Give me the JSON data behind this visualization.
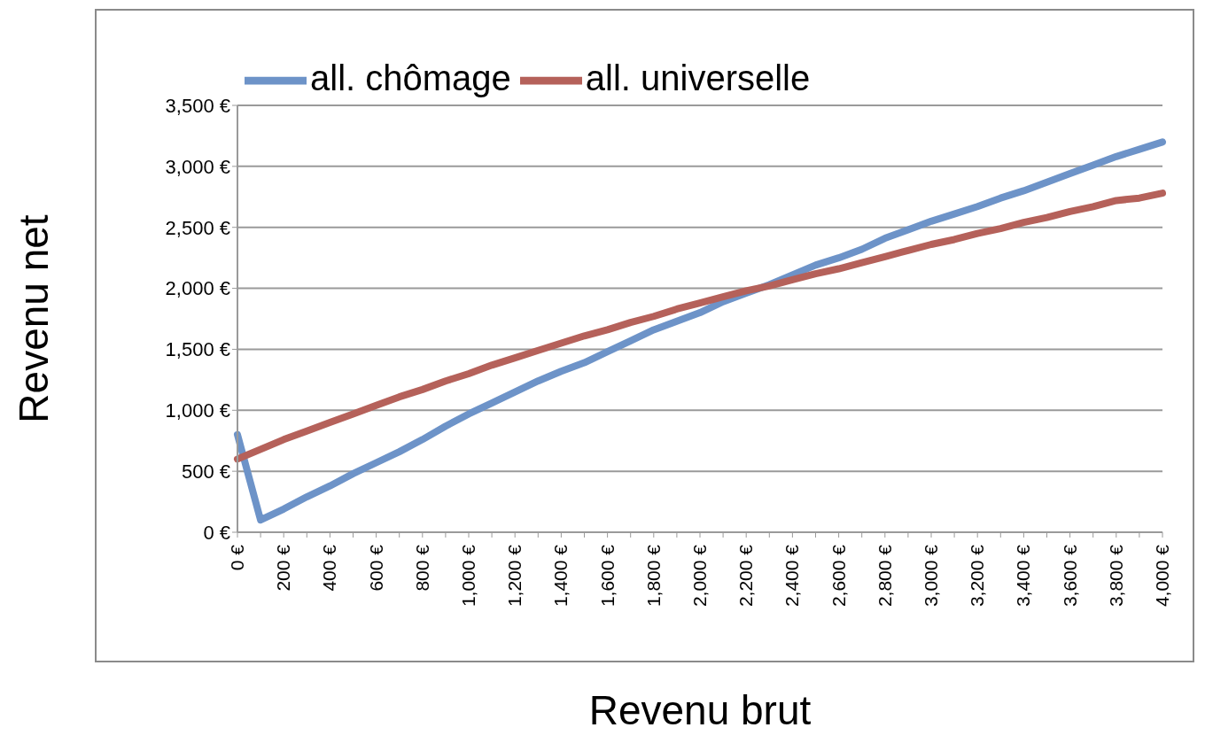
{
  "chart_data": {
    "type": "line",
    "xlabel": "Revenu brut",
    "ylabel": "Revenu net",
    "categories": [
      "0 €",
      null,
      "200 €",
      null,
      "400 €",
      null,
      "600 €",
      null,
      "800 €",
      null,
      "1,000 €",
      null,
      "1,200 €",
      null,
      "1,400 €",
      null,
      "1,600 €",
      null,
      "1,800 €",
      null,
      "2,000 €",
      null,
      "2,200 €",
      null,
      "2,400 €",
      null,
      "2,600 €",
      null,
      "2,800 €",
      null,
      "3,000 €",
      null,
      "3,200 €",
      null,
      "3,400 €",
      null,
      "3,600 €",
      null,
      "3,800 €",
      null,
      "4,000 €"
    ],
    "series": [
      {
        "name": "all. chômage",
        "color": "#6d93c8",
        "values": [
          800,
          100,
          190,
          290,
          380,
          480,
          570,
          660,
          760,
          870,
          970,
          1060,
          1150,
          1240,
          1320,
          1390,
          1480,
          1570,
          1660,
          1730,
          1800,
          1890,
          1960,
          2030,
          2110,
          2190,
          2250,
          2320,
          2410,
          2480,
          2550,
          2610,
          2670,
          2740,
          2800,
          2870,
          2940,
          3010,
          3080,
          3140,
          3200
        ]
      },
      {
        "name": "all. universelle",
        "color": "#b5615a",
        "values": [
          600,
          680,
          760,
          830,
          900,
          970,
          1040,
          1110,
          1170,
          1240,
          1300,
          1370,
          1430,
          1490,
          1550,
          1610,
          1660,
          1720,
          1770,
          1830,
          1880,
          1930,
          1980,
          2020,
          2070,
          2120,
          2160,
          2210,
          2260,
          2310,
          2360,
          2400,
          2450,
          2490,
          2540,
          2580,
          2630,
          2670,
          2720,
          2740,
          2780
        ]
      }
    ],
    "ylim": [
      0,
      3500
    ],
    "yticks": [
      {
        "value": 0,
        "label": "0 €"
      },
      {
        "value": 500,
        "label": "500 €"
      },
      {
        "value": 1000,
        "label": "1,000 €"
      },
      {
        "value": 1500,
        "label": "1,500 €"
      },
      {
        "value": 2000,
        "label": "2,000 €"
      },
      {
        "value": 2500,
        "label": "2,500 €"
      },
      {
        "value": 3000,
        "label": "3,000 €"
      },
      {
        "value": 3500,
        "label": "3,500 €"
      }
    ],
    "grid": "y",
    "legend": "top",
    "marker": "none",
    "line_style": "solid"
  }
}
